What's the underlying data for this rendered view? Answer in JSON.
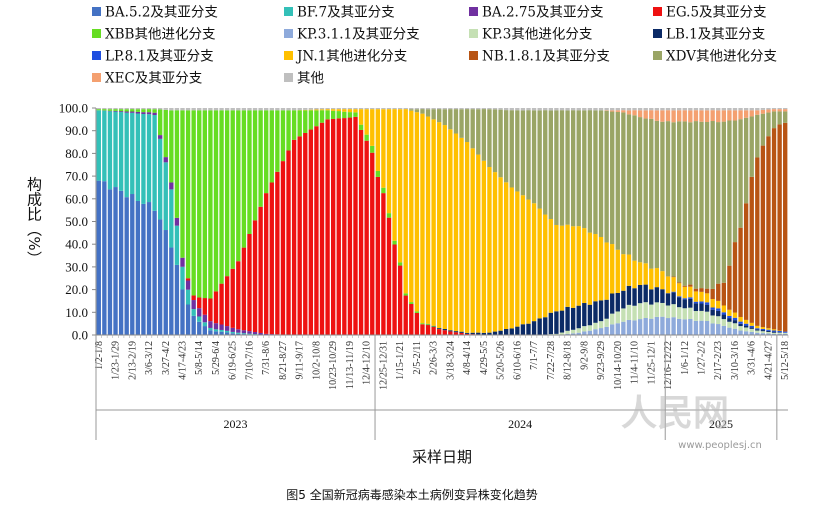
{
  "chart_data": {
    "type": "bar",
    "stacked": true,
    "ylabel": "构成比（%）",
    "xlabel": "采样日期",
    "caption": "图5 全国新冠病毒感染本土病例变异株变化趋势",
    "ylim": [
      0,
      100
    ],
    "yticks": [
      "0.0",
      "10.0",
      "20.0",
      "30.0",
      "40.0",
      "50.0",
      "60.0",
      "70.0",
      "80.0",
      "90.0",
      "100.0"
    ],
    "legend_position": "top",
    "years": [
      {
        "label": "2023",
        "from": 0,
        "to": 49
      },
      {
        "label": "2024",
        "from": 50,
        "to": 101
      },
      {
        "label": "2025",
        "from": 102,
        "to": 121
      }
    ],
    "categories": [
      "1/2-1/8",
      "1/9-1/15",
      "1/16-1/22",
      "1/23-1/29",
      "1/30-2/5",
      "2/6-2/12",
      "2/13-2/19",
      "2/20-2/26",
      "2/27-3/5",
      "3/6-3/12",
      "3/13-3/19",
      "3/20-3/26",
      "3/27-4/2",
      "4/3-4/9",
      "4/10-4/16",
      "4/17-4/23",
      "4/24-4/30",
      "5/1-5/7",
      "5/8-5/14",
      "5/15-5/21",
      "5/22-5/28",
      "5/29-6/4",
      "6/5-6/11",
      "6/12-6/18",
      "6/19-6/25",
      "6/26-7/2",
      "7/3-7/9",
      "7/10-7/16",
      "7/17-7/23",
      "7/24-7/30",
      "7/31-8/6",
      "8/7-8/13",
      "8/14-8/20",
      "8/21-8/27",
      "8/28-9/3",
      "9/4-9/10",
      "9/11-9/17",
      "9/18-9/24",
      "9/25-10/1",
      "10/2-10/8",
      "10/9-10/15",
      "10/16-10/22",
      "10/23-10/29",
      "10/30-11/5",
      "11/6-11/12",
      "11/13-11/19",
      "11/20-11/26",
      "11/27-12/3",
      "12/4-12/10",
      "12/11-12/17",
      "12/18-12/24",
      "12/25-12/31",
      "1/1-1/7",
      "1/8-1/14",
      "1/15-1/21",
      "1/22-1/28",
      "1/29-2/4",
      "2/5-2/11",
      "2/12-2/18",
      "2/19-2/25",
      "2/26-3/3",
      "3/4-3/10",
      "3/11-3/17",
      "3/18-3/24",
      "3/25-3/31",
      "4/1-4/7",
      "4/8-4/14",
      "4/15-4/21",
      "4/22-4/28",
      "4/29-5/5",
      "5/6-5/12",
      "5/13-5/19",
      "5/20-5/26",
      "5/27-6/2",
      "6/3-6/9",
      "6/10-6/16",
      "6/17-6/23",
      "6/24-6/30",
      "7/1-7/7",
      "7/8-7/14",
      "7/15-7/21",
      "7/22-7/28",
      "7/29-8/4",
      "8/5-8/11",
      "8/12-8/18",
      "8/19-8/25",
      "8/26-9/1",
      "9/2-9/8",
      "9/9-9/15",
      "9/16-9/22",
      "9/23-9/29",
      "9/30-10/6",
      "10/7-10/13",
      "10/14-10/20",
      "10/21-10/27",
      "10/28-11/3",
      "11/4-11/10",
      "11/11-11/17",
      "11/18-11/24",
      "11/25-12/1",
      "12/2-12/8",
      "12/9-12/15",
      "12/16-12/22",
      "12/23-12/29",
      "12/30-1/5",
      "1/6-1/12",
      "1/13-1/19",
      "1/20-1/26",
      "1/27-2/2",
      "2/3-2/9",
      "2/10-2/16",
      "2/17-2/23",
      "2/24-3/2",
      "3/3-3/9",
      "3/10-3/16",
      "3/17-3/23",
      "3/24-3/30",
      "3/31-4/6",
      "4/7-4/13",
      "4/14-4/20",
      "4/21-4/27",
      "4/28-5/4",
      "5/5-5/11",
      "5/12-5/18"
    ],
    "tick_labels": [
      {
        "i": 0,
        "label": "1/2-1/8"
      },
      {
        "i": 3,
        "label": "1/23-1/29"
      },
      {
        "i": 6,
        "label": "2/13-2/19"
      },
      {
        "i": 9,
        "label": "3/6-3/12"
      },
      {
        "i": 12,
        "label": "3/27-4/2"
      },
      {
        "i": 15,
        "label": "4/17-4/23"
      },
      {
        "i": 18,
        "label": "5/8-5/14"
      },
      {
        "i": 21,
        "label": "5/29-6/4"
      },
      {
        "i": 24,
        "label": "6/19-6/25"
      },
      {
        "i": 27,
        "label": "7/10-7/16"
      },
      {
        "i": 30,
        "label": "7/31-8/6"
      },
      {
        "i": 33,
        "label": "8/21-8/27"
      },
      {
        "i": 36,
        "label": "9/11-9/17"
      },
      {
        "i": 39,
        "label": "10/2-10/8"
      },
      {
        "i": 42,
        "label": "10/23-10/29"
      },
      {
        "i": 45,
        "label": "11/13-11/19"
      },
      {
        "i": 48,
        "label": "12/4-12/10"
      },
      {
        "i": 51,
        "label": "12/25-12/31"
      },
      {
        "i": 54,
        "label": "1/15-1/21"
      },
      {
        "i": 57,
        "label": "2/5-2/11"
      },
      {
        "i": 60,
        "label": "2/26-3/3"
      },
      {
        "i": 63,
        "label": "3/18-3/24"
      },
      {
        "i": 66,
        "label": "4/8-4/14"
      },
      {
        "i": 69,
        "label": "4/29-5/5"
      },
      {
        "i": 72,
        "label": "5/20-5/26"
      },
      {
        "i": 75,
        "label": "6/10-6/16"
      },
      {
        "i": 78,
        "label": "7/1-7/7"
      },
      {
        "i": 81,
        "label": "7/22-7/28"
      },
      {
        "i": 84,
        "label": "8/12-8/18"
      },
      {
        "i": 87,
        "label": "9/2-9/8"
      },
      {
        "i": 90,
        "label": "9/23-9/29"
      },
      {
        "i": 93,
        "label": "10/14-10/20"
      },
      {
        "i": 96,
        "label": "11/4-11/10"
      },
      {
        "i": 99,
        "label": "11/25-12/1"
      },
      {
        "i": 102,
        "label": "12/16-12/22"
      },
      {
        "i": 105,
        "label": "1/6-1/12"
      },
      {
        "i": 108,
        "label": "1/27-2/2"
      },
      {
        "i": 111,
        "label": "2/17-2/23"
      },
      {
        "i": 114,
        "label": "3/10-3/16"
      },
      {
        "i": 117,
        "label": "3/31-4/6"
      },
      {
        "i": 120,
        "label": "4/21-4/27"
      },
      {
        "i": 123,
        "label": "5/12-5/18"
      }
    ],
    "keyframes": [
      {
        "at": 0,
        "BA.5.2": 68,
        "BF.7": 31,
        "BA.2.75": 0,
        "EG.5": 0,
        "XBB": 0.5,
        "KP.3.1.1": 0,
        "KP.3": 0,
        "LB.1": 0,
        "LP.8.1": 0,
        "JN.1": 0,
        "NB.1.8.1": 0,
        "XDV": 0,
        "XEC": 0,
        "OTHER": 0.5
      },
      {
        "at": 10,
        "BA.5.2": 56,
        "BF.7": 41,
        "BA.2.75": 1,
        "EG.5": 0,
        "XBB": 1.5,
        "KP.3.1.1": 0,
        "KP.3": 0,
        "LB.1": 0,
        "LP.8.1": 0,
        "JN.1": 0,
        "NB.1.8.1": 0,
        "XDV": 0,
        "XEC": 0,
        "OTHER": 0.5
      },
      {
        "at": 13,
        "BA.5.2": 40,
        "BF.7": 25,
        "BA.2.75": 3,
        "EG.5": 0,
        "XBB": 31,
        "KP.3.1.1": 0,
        "KP.3": 0,
        "LB.1": 0,
        "LP.8.1": 0,
        "JN.1": 0,
        "NB.1.8.1": 0,
        "XDV": 0,
        "XEC": 0,
        "OTHER": 1
      },
      {
        "at": 15,
        "BA.5.2": 20,
        "BF.7": 10,
        "BA.2.75": 4,
        "EG.5": 0,
        "XBB": 65,
        "KP.3.1.1": 0,
        "KP.3": 0,
        "LB.1": 0,
        "LP.8.1": 0,
        "JN.1": 0,
        "NB.1.8.1": 0,
        "XDV": 0,
        "XEC": 0,
        "OTHER": 1
      },
      {
        "at": 17,
        "BA.5.2": 8,
        "BF.7": 3,
        "BA.2.75": 4,
        "EG.5": 2,
        "XBB": 82,
        "KP.3.1.1": 0,
        "KP.3": 0,
        "LB.1": 0,
        "LP.8.1": 0,
        "JN.1": 0,
        "NB.1.8.1": 0,
        "XDV": 0,
        "XEC": 0,
        "OTHER": 1
      },
      {
        "at": 20,
        "BA.5.2": 2,
        "BF.7": 1,
        "BA.2.75": 3,
        "EG.5": 10,
        "XBB": 83,
        "KP.3.1.1": 0,
        "KP.3": 0,
        "LB.1": 0,
        "LP.8.1": 0,
        "JN.1": 0,
        "NB.1.8.1": 0,
        "XDV": 0,
        "XEC": 0,
        "OTHER": 1
      },
      {
        "at": 25,
        "BA.5.2": 0.5,
        "BF.7": 0.5,
        "BA.2.75": 1.5,
        "EG.5": 30,
        "XBB": 66.5,
        "KP.3.1.1": 0,
        "KP.3": 0,
        "LB.1": 0,
        "LP.8.1": 0,
        "JN.1": 0,
        "NB.1.8.1": 0,
        "XDV": 0,
        "XEC": 0,
        "OTHER": 1
      },
      {
        "at": 30,
        "BA.5.2": 0,
        "BF.7": 0,
        "BA.2.75": 0.5,
        "EG.5": 62,
        "XBB": 36.5,
        "KP.3.1.1": 0,
        "KP.3": 0,
        "LB.1": 0,
        "LP.8.1": 0,
        "JN.1": 0,
        "NB.1.8.1": 0,
        "XDV": 0,
        "XEC": 0,
        "OTHER": 1
      },
      {
        "at": 35,
        "BA.5.2": 0,
        "BF.7": 0,
        "BA.2.75": 0,
        "EG.5": 86,
        "XBB": 13,
        "KP.3.1.1": 0,
        "KP.3": 0,
        "LB.1": 0,
        "LP.8.1": 0,
        "JN.1": 0,
        "NB.1.8.1": 0,
        "XDV": 0,
        "XEC": 0,
        "OTHER": 1
      },
      {
        "at": 41,
        "BA.5.2": 0,
        "BF.7": 0,
        "BA.2.75": 0,
        "EG.5": 95,
        "XBB": 4,
        "KP.3.1.1": 0,
        "KP.3": 0,
        "LB.1": 0,
        "LP.8.1": 0,
        "JN.1": 0.5,
        "NB.1.8.1": 0,
        "XDV": 0,
        "XEC": 0,
        "OTHER": 0.5
      },
      {
        "at": 46,
        "BA.5.2": 0,
        "BF.7": 0,
        "BA.2.75": 0,
        "EG.5": 96,
        "XBB": 2,
        "KP.3.1.1": 0,
        "KP.3": 0,
        "LB.1": 0,
        "LP.8.1": 0,
        "JN.1": 1.5,
        "NB.1.8.1": 0,
        "XDV": 0,
        "XEC": 0,
        "OTHER": 0.5
      },
      {
        "at": 49,
        "BA.5.2": 0,
        "BF.7": 0,
        "BA.2.75": 0,
        "EG.5": 80,
        "XBB": 3,
        "KP.3.1.1": 0,
        "KP.3": 0,
        "LB.1": 0,
        "LP.8.1": 0,
        "JN.1": 16.5,
        "NB.1.8.1": 0,
        "XDV": 0,
        "XEC": 0,
        "OTHER": 0.5
      },
      {
        "at": 52,
        "BA.5.2": 0,
        "BF.7": 0,
        "BA.2.75": 0,
        "EG.5": 52,
        "XBB": 2,
        "KP.3.1.1": 0,
        "KP.3": 0,
        "LB.1": 0,
        "LP.8.1": 0,
        "JN.1": 45.5,
        "NB.1.8.1": 0,
        "XDV": 0,
        "XEC": 0,
        "OTHER": 0.5
      },
      {
        "at": 55,
        "BA.5.2": 0,
        "BF.7": 0,
        "BA.2.75": 0,
        "EG.5": 18,
        "XBB": 1,
        "KP.3.1.1": 0,
        "KP.3": 0,
        "LB.1": 0,
        "LP.8.1": 0,
        "JN.1": 80.5,
        "NB.1.8.1": 0,
        "XDV": 0,
        "XEC": 0,
        "OTHER": 0.5
      },
      {
        "at": 58,
        "BA.5.2": 0,
        "BF.7": 0,
        "BA.2.75": 0,
        "EG.5": 5,
        "XBB": 0.5,
        "KP.3.1.1": 0,
        "KP.3": 0,
        "LB.1": 0,
        "LP.8.1": 0,
        "JN.1": 92,
        "NB.1.8.1": 0,
        "XDV": 2,
        "XEC": 0,
        "OTHER": 0.5
      },
      {
        "at": 62,
        "BA.5.2": 0,
        "BF.7": 0,
        "BA.2.75": 0,
        "EG.5": 2,
        "XBB": 0,
        "KP.3.1.1": 0,
        "KP.3": 0,
        "LB.1": 0.5,
        "LP.8.1": 0,
        "JN.1": 90,
        "NB.1.8.1": 0,
        "XDV": 7,
        "XEC": 0,
        "OTHER": 0.5
      },
      {
        "at": 66,
        "BA.5.2": 0,
        "BF.7": 0,
        "BA.2.75": 0,
        "EG.5": 0.5,
        "XBB": 0,
        "KP.3.1.1": 0,
        "KP.3": 0,
        "LB.1": 0.5,
        "LP.8.1": 0,
        "JN.1": 84,
        "NB.1.8.1": 0,
        "XDV": 14.5,
        "XEC": 0,
        "OTHER": 0.5
      },
      {
        "at": 70,
        "BA.5.2": 0,
        "BF.7": 0,
        "BA.2.75": 0,
        "EG.5": 0,
        "XBB": 0,
        "KP.3.1.1": 0,
        "KP.3": 0,
        "LB.1": 1,
        "LP.8.1": 0,
        "JN.1": 73,
        "NB.1.8.1": 0,
        "XDV": 25.5,
        "XEC": 0,
        "OTHER": 0.5
      },
      {
        "at": 74,
        "BA.5.2": 0,
        "BF.7": 0,
        "BA.2.75": 0,
        "EG.5": 0,
        "XBB": 0,
        "KP.3.1.1": 0,
        "KP.3": 0,
        "LB.1": 3,
        "LP.8.1": 0,
        "JN.1": 62,
        "NB.1.8.1": 0,
        "XDV": 34,
        "XEC": 0,
        "OTHER": 1
      },
      {
        "at": 78,
        "BA.5.2": 0,
        "BF.7": 0,
        "BA.2.75": 0,
        "EG.5": 0,
        "XBB": 0,
        "KP.3.1.1": 0,
        "KP.3": 0,
        "LB.1": 6,
        "LP.8.1": 0,
        "JN.1": 52,
        "NB.1.8.1": 0,
        "XDV": 41,
        "XEC": 0,
        "OTHER": 1
      },
      {
        "at": 82,
        "BA.5.2": 0,
        "BF.7": 0,
        "BA.2.75": 0,
        "EG.5": 0,
        "XBB": 0,
        "KP.3.1.1": 0,
        "KP.3": 0.5,
        "LB.1": 10,
        "LP.8.1": 0,
        "JN.1": 38,
        "NB.1.8.1": 0,
        "XDV": 50.5,
        "XEC": 0,
        "OTHER": 1
      },
      {
        "at": 86,
        "BA.5.2": 0,
        "BF.7": 0,
        "BA.2.75": 0,
        "EG.5": 0,
        "XBB": 0,
        "KP.3.1.1": 1,
        "KP.3": 2,
        "LB.1": 10,
        "LP.8.1": 0,
        "JN.1": 35,
        "NB.1.8.1": 0,
        "XDV": 51,
        "XEC": 0,
        "OTHER": 1
      },
      {
        "at": 90,
        "BA.5.2": 0,
        "BF.7": 0,
        "BA.2.75": 0,
        "EG.5": 0,
        "XBB": 0,
        "KP.3.1.1": 3,
        "KP.3": 3,
        "LB.1": 9,
        "LP.8.1": 0,
        "JN.1": 28,
        "NB.1.8.1": 0,
        "XDV": 56,
        "XEC": 0,
        "OTHER": 1
      },
      {
        "at": 94,
        "BA.5.2": 0,
        "BF.7": 0,
        "BA.2.75": 0,
        "EG.5": 0,
        "XBB": 0,
        "KP.3.1.1": 6,
        "KP.3": 6,
        "LB.1": 8,
        "LP.8.1": 0,
        "JN.1": 16,
        "NB.1.8.1": 0,
        "XDV": 62,
        "XEC": 1,
        "OTHER": 1
      },
      {
        "at": 97,
        "BA.5.2": 0,
        "BF.7": 0,
        "BA.2.75": 0,
        "EG.5": 0,
        "XBB": 0,
        "KP.3.1.1": 7,
        "KP.3": 7,
        "LB.1": 8,
        "LP.8.1": 0,
        "JN.1": 10,
        "NB.1.8.1": 0,
        "XDV": 64,
        "XEC": 3,
        "OTHER": 1
      },
      {
        "at": 101,
        "BA.5.2": 0,
        "BF.7": 0,
        "BA.2.75": 0,
        "EG.5": 0,
        "XBB": 0,
        "KP.3.1.1": 8,
        "KP.3": 6,
        "LB.1": 6,
        "LP.8.1": 0,
        "JN.1": 8,
        "NB.1.8.1": 0,
        "XDV": 66,
        "XEC": 5,
        "OTHER": 1
      },
      {
        "at": 105,
        "BA.5.2": 0,
        "BF.7": 0,
        "BA.2.75": 0,
        "EG.5": 0,
        "XBB": 0,
        "KP.3.1.1": 7,
        "KP.3": 5,
        "LB.1": 4,
        "LP.8.1": 0.5,
        "JN.1": 5,
        "NB.1.8.1": 0.5,
        "XDV": 72,
        "XEC": 5,
        "OTHER": 1
      },
      {
        "at": 109,
        "BA.5.2": 0,
        "BF.7": 0,
        "BA.2.75": 0,
        "EG.5": 0,
        "XBB": 0,
        "KP.3.1.1": 6,
        "KP.3": 4,
        "LB.1": 3,
        "LP.8.1": 1,
        "JN.1": 4,
        "NB.1.8.1": 2,
        "XDV": 74,
        "XEC": 5,
        "OTHER": 1
      },
      {
        "at": 112,
        "BA.5.2": 0,
        "BF.7": 0,
        "BA.2.75": 0,
        "EG.5": 0,
        "XBB": 0,
        "KP.3.1.1": 4,
        "KP.3": 3,
        "LB.1": 2,
        "LP.8.1": 1,
        "JN.1": 3,
        "NB.1.8.1": 10,
        "XDV": 71,
        "XEC": 5,
        "OTHER": 1
      },
      {
        "at": 115,
        "BA.5.2": 0,
        "BF.7": 0,
        "BA.2.75": 0,
        "EG.5": 0,
        "XBB": 0,
        "KP.3.1.1": 2,
        "KP.3": 2,
        "LB.1": 1,
        "LP.8.1": 1,
        "JN.1": 2,
        "NB.1.8.1": 40,
        "XDV": 47,
        "XEC": 4,
        "OTHER": 1
      },
      {
        "at": 118,
        "BA.5.2": 0,
        "BF.7": 0,
        "BA.2.75": 0,
        "EG.5": 0,
        "XBB": 0,
        "KP.3.1.1": 1,
        "KP.3": 1,
        "LB.1": 0.5,
        "LP.8.1": 0.5,
        "JN.1": 1,
        "NB.1.8.1": 75,
        "XDV": 18,
        "XEC": 2,
        "OTHER": 1
      },
      {
        "at": 121,
        "BA.5.2": 0,
        "BF.7": 0,
        "BA.2.75": 0,
        "EG.5": 0,
        "XBB": 0,
        "KP.3.1.1": 0.5,
        "KP.3": 0.5,
        "LB.1": 0.5,
        "LP.8.1": 0.5,
        "JN.1": 0.5,
        "NB.1.8.1": 89,
        "XDV": 7,
        "XEC": 1,
        "OTHER": 0.5
      },
      {
        "at": 123,
        "BA.5.2": 0,
        "BF.7": 0,
        "BA.2.75": 0,
        "EG.5": 0,
        "XBB": 0,
        "KP.3.1.1": 0.5,
        "KP.3": 0.5,
        "LB.1": 0,
        "LP.8.1": 0.5,
        "JN.1": 0,
        "NB.1.8.1": 92,
        "XDV": 5,
        "XEC": 1,
        "OTHER": 0.5
      }
    ],
    "series": [
      {
        "key": "BA.5.2",
        "name": "BA.5.2及其亚分支",
        "color": "#4472c4"
      },
      {
        "key": "BF.7",
        "name": "BF.7及其亚分支",
        "color": "#33c0b8"
      },
      {
        "key": "BA.2.75",
        "name": "BA.2.75及其亚分支",
        "color": "#7030a0"
      },
      {
        "key": "EG.5",
        "name": "EG.5及其亚分支",
        "color": "#ee1111"
      },
      {
        "key": "XBB",
        "name": "XBB其他进化分支",
        "color": "#66dd22"
      },
      {
        "key": "KP.3.1.1",
        "name": "KP.3.1.1及其亚分支",
        "color": "#8eaadb"
      },
      {
        "key": "KP.3",
        "name": "KP.3其他进化分支",
        "color": "#c5e0b4"
      },
      {
        "key": "LB.1",
        "name": "LB.1及其亚分支",
        "color": "#0b2a66"
      },
      {
        "key": "LP.8.1",
        "name": "LP.8.1及其亚分支",
        "color": "#1f4fe0"
      },
      {
        "key": "JN.1",
        "name": "JN.1其他进化分支",
        "color": "#ffc000"
      },
      {
        "key": "NB.1.8.1",
        "name": "NB.1.8.1及其亚分支",
        "color": "#b85414"
      },
      {
        "key": "XDV",
        "name": "XDV其他进化分支",
        "color": "#9aa565"
      },
      {
        "key": "XEC",
        "name": "XEC及其亚分支",
        "color": "#f4a070"
      },
      {
        "key": "OTHER",
        "name": "其他",
        "color": "#bfbfbf"
      }
    ]
  },
  "watermark": {
    "text": "人民网",
    "url": "www.peoplesj.cn"
  }
}
